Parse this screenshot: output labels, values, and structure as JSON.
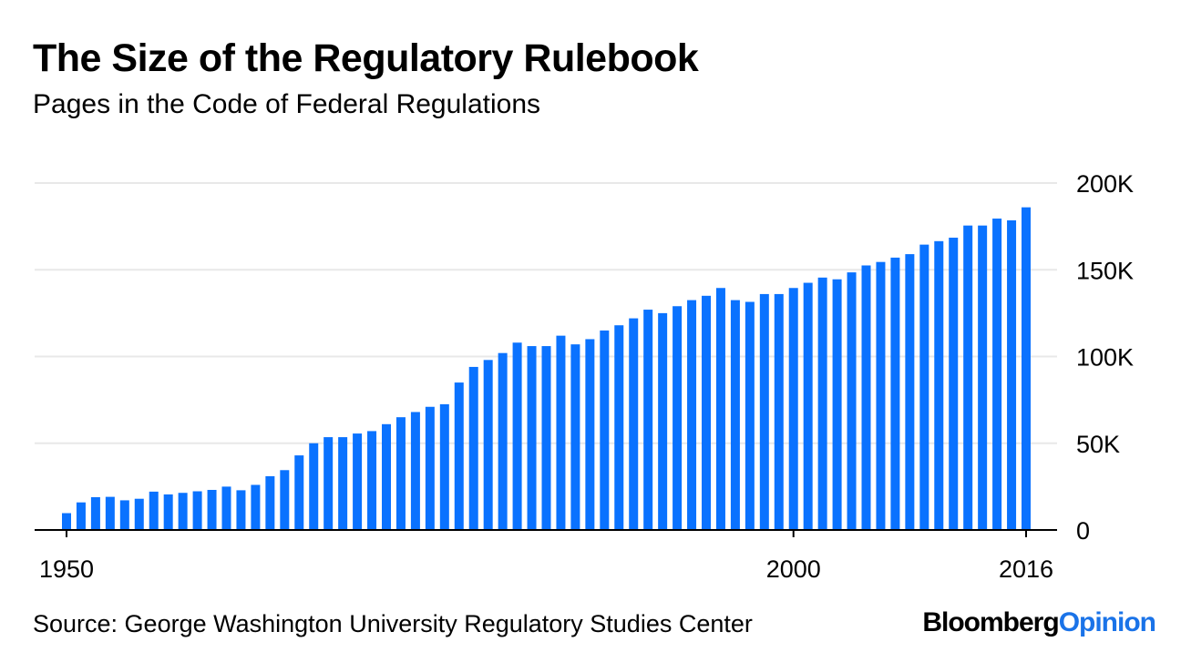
{
  "header": {
    "title": "The Size of the Regulatory Rulebook",
    "subtitle": "Pages in the Code of Federal Regulations"
  },
  "footer": {
    "source": "Source: George Washington University Regulatory Studies Center",
    "brand_part1": "Bloomberg",
    "brand_part2": "Opinion"
  },
  "colors": {
    "bar": "#0a72ff",
    "grid": "#e8e8e8",
    "axis": "#000000",
    "brand_accent": "#1a73e8"
  },
  "chart_data": {
    "type": "bar",
    "title": "The Size of the Regulatory Rulebook",
    "subtitle": "Pages in the Code of Federal Regulations",
    "xlabel": "",
    "ylabel": "",
    "ylim": [
      0,
      200000
    ],
    "grid": true,
    "y_axis_side": "right",
    "x_tick_labels": [
      "1950",
      "2000",
      "2016"
    ],
    "y_tick_values": [
      0,
      50000,
      100000,
      150000,
      200000
    ],
    "y_tick_labels": [
      "0",
      "50K",
      "100K",
      "150K",
      "200K"
    ],
    "categories": [
      "1950",
      "1951",
      "1952",
      "1953",
      "1954",
      "1955",
      "1956",
      "1957",
      "1958",
      "1959",
      "1960",
      "1961",
      "1962",
      "1963",
      "1964",
      "1965",
      "1966",
      "1967",
      "1968",
      "1969",
      "1970",
      "1971",
      "1972",
      "1973",
      "1974",
      "1975",
      "1976",
      "1977",
      "1978",
      "1979",
      "1980",
      "1981",
      "1982",
      "1983",
      "1984",
      "1985",
      "1986",
      "1987",
      "1988",
      "1989",
      "1990",
      "1991",
      "1992",
      "1993",
      "1994",
      "1995",
      "1996",
      "1997",
      "1998",
      "1999",
      "2000",
      "2001",
      "2002",
      "2003",
      "2004",
      "2005",
      "2006",
      "2007",
      "2008",
      "2009",
      "2010",
      "2011",
      "2012",
      "2013",
      "2014",
      "2015",
      "2016"
    ],
    "values": [
      9700,
      15900,
      18900,
      19100,
      17100,
      18000,
      22100,
      20500,
      21400,
      22300,
      23100,
      25000,
      22900,
      26000,
      31000,
      34500,
      43000,
      50000,
      53500,
      53500,
      55600,
      57000,
      61000,
      65000,
      68000,
      71000,
      72500,
      85000,
      94000,
      98000,
      102000,
      108000,
      106000,
      106000,
      112000,
      107000,
      110000,
      115000,
      118000,
      122000,
      127000,
      125000,
      129000,
      132500,
      135000,
      139500,
      132500,
      131500,
      136000,
      136000,
      139500,
      142500,
      145500,
      144500,
      148500,
      152500,
      154500,
      157000,
      159000,
      164500,
      166500,
      168500,
      175500,
      175500,
      179500,
      178500,
      186000
    ]
  }
}
